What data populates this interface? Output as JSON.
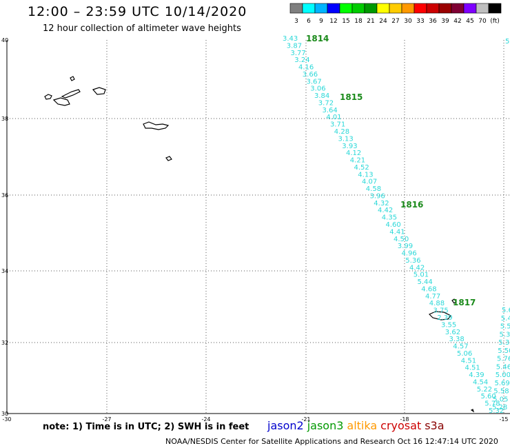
{
  "header": {
    "title": "12:00 – 23:59 UTC 10/14/2020",
    "subtitle": "12 hour collection of altimeter wave heights"
  },
  "colors": {
    "track_values": "#2ad8d8",
    "track_labels": "#1a8a1a",
    "grid": "#555555",
    "coast": "#000000"
  },
  "scale": {
    "swatches": [
      "#7f7f7f",
      "#00ffff",
      "#00b4ff",
      "#0000ff",
      "#00ff00",
      "#00cc00",
      "#009900",
      "#ffff00",
      "#ffcc00",
      "#ff9900",
      "#ff0000",
      "#cc0000",
      "#990000",
      "#7f0033",
      "#7f00ff",
      "#bfbfbf",
      "#000000"
    ],
    "labels": [
      "3",
      "6",
      "9",
      "12",
      "15",
      "18",
      "21",
      "24",
      "27",
      "30",
      "33",
      "36",
      "39",
      "42",
      "45",
      "70",
      "(ft)"
    ]
  },
  "axes": {
    "lat_labels": [
      "40",
      "38",
      "36",
      "34",
      "32",
      "30"
    ],
    "lon_labels": [
      "-30",
      "-27",
      "-24",
      "-21",
      "-18",
      "-15"
    ]
  },
  "track_labels": [
    "1814",
    "1815",
    "1816",
    "1817"
  ],
  "track_values": [
    "3.43",
    "3.87",
    "3.77",
    "3.24",
    "4.16",
    "3.66",
    "3.67",
    "3.06",
    "3.84",
    "3.72",
    "3.64",
    "4.01",
    "3.71",
    "4.28",
    "3.13",
    "3.93",
    "4.12",
    "4.21",
    "4.52",
    "4.13",
    "4.07",
    "4.58",
    "3.96",
    "4.32",
    "4.42",
    "4.35",
    "4.60",
    "4.41",
    "4.50",
    "3.99",
    "4.96",
    "5.36",
    "4.42",
    "5.01",
    "5.44",
    "4.68",
    "4.77",
    "4.88",
    "3.75",
    "2.39",
    "3.55",
    "3.62",
    "3.38",
    "4.57",
    "5.06",
    "4.51",
    "4.51",
    "4.39",
    "4.54",
    "5.22",
    "5.60",
    "5.78",
    "5.32"
  ],
  "right_values": [
    "5.6",
    "5.4",
    "5.5",
    "5.3",
    "5.3",
    "5.50",
    "5.76",
    "5.46",
    "5.00",
    "5.69",
    "5.58",
    "5.05",
    "5.28"
  ],
  "footer": {
    "note": "note:  1) Time is in UTC;  2) SWH is in feet",
    "satellites": [
      {
        "name": "jason2",
        "color": "#0000cc"
      },
      {
        "name": "jason3",
        "color": "#009900"
      },
      {
        "name": "altika",
        "color": "#ff9900"
      },
      {
        "name": "cryosat",
        "color": "#cc0000"
      },
      {
        "name": "s3a",
        "color": "#880000"
      }
    ],
    "credit": "NOAA/NESDIS Center for Satellite Applications and Research     Oct 16 12:47:14 UTC 2020"
  }
}
